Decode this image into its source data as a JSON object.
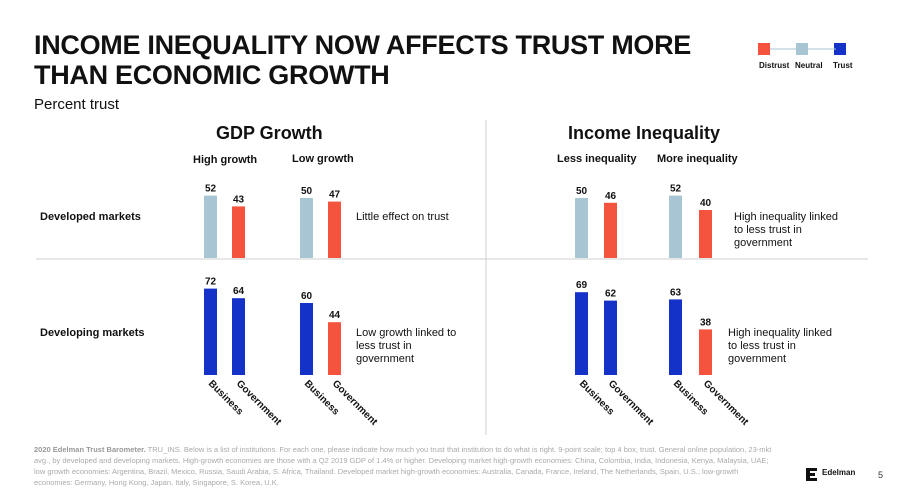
{
  "title_lines": [
    "INCOME INEQUALITY NOW AFFECTS TRUST MORE",
    "THAN ECONOMIC GROWTH"
  ],
  "subtitle": "Percent trust",
  "legend": [
    {
      "label": "Distrust",
      "color": "#f4533d"
    },
    {
      "label": "Neutral",
      "color": "#a7c5d2"
    },
    {
      "label": "Trust",
      "color": "#1432c8"
    }
  ],
  "colors": {
    "distrust": "#f4533d",
    "neutral": "#a7c5d2",
    "trust": "#1432c8"
  },
  "chart_data": {
    "type": "bar",
    "title": "INCOME INEQUALITY NOW AFFECTS TRUST MORE THAN ECONOMIC GROWTH",
    "ylabel": "Percent trust",
    "ylim": [
      0,
      100
    ],
    "categories": [
      "Business",
      "Government"
    ],
    "row_labels": [
      "Developed markets",
      "Developing markets"
    ],
    "panels": [
      {
        "title": "GDP Growth",
        "columns": [
          "High growth",
          "Low growth"
        ],
        "cells": [
          [
            {
              "values": [
                52,
                43
              ],
              "colors": [
                "neutral",
                "distrust"
              ]
            },
            {
              "values": [
                50,
                47
              ],
              "colors": [
                "neutral",
                "distrust"
              ]
            }
          ],
          [
            {
              "values": [
                72,
                64
              ],
              "colors": [
                "trust",
                "trust"
              ]
            },
            {
              "values": [
                60,
                44
              ],
              "colors": [
                "trust",
                "distrust"
              ]
            }
          ]
        ],
        "annotations": [
          "Little effect on trust",
          "Low growth linked to less trust in government"
        ]
      },
      {
        "title": "Income Inequality",
        "columns": [
          "Less inequality",
          "More inequality"
        ],
        "cells": [
          [
            {
              "values": [
                50,
                46
              ],
              "colors": [
                "neutral",
                "distrust"
              ]
            },
            {
              "values": [
                52,
                40
              ],
              "colors": [
                "neutral",
                "distrust"
              ]
            }
          ],
          [
            {
              "values": [
                69,
                62
              ],
              "colors": [
                "trust",
                "trust"
              ]
            },
            {
              "values": [
                63,
                38
              ],
              "colors": [
                "trust",
                "distrust"
              ]
            }
          ]
        ],
        "annotations": [
          "High inequality linked to less trust in government",
          "High inequality linked to less trust in government"
        ]
      }
    ]
  },
  "footnote_bold": "2020 Edelman Trust Barometer.",
  "footnote_text": " TRU_INS. Below is a list of institutions. For each one, please indicate how much you trust that institution to do what is right. 9-point scale; top 4 box, trust. General online population, 23-mkt avg., by developed and developing markets. High-growth economies are those with a Q2 2019 GDP of 1.4% or higher. Developing market high-growth economies: China, Colombia, India, Indonesia, Kenya, Malaysia, UAE; low growth economies: Argentina, Brazil, Mexico, Russia, Saudi Arabia, S. Africa, Thailand. Developed market high-growth economies: Australia, Canada, France, Ireland, The Netherlands, Spain, U.S.; low-growth economies: Germany, Hong Kong, Japan, Italy, Singapore, S. Korea, U.K.",
  "brand": "Edelman",
  "page_number": "5"
}
